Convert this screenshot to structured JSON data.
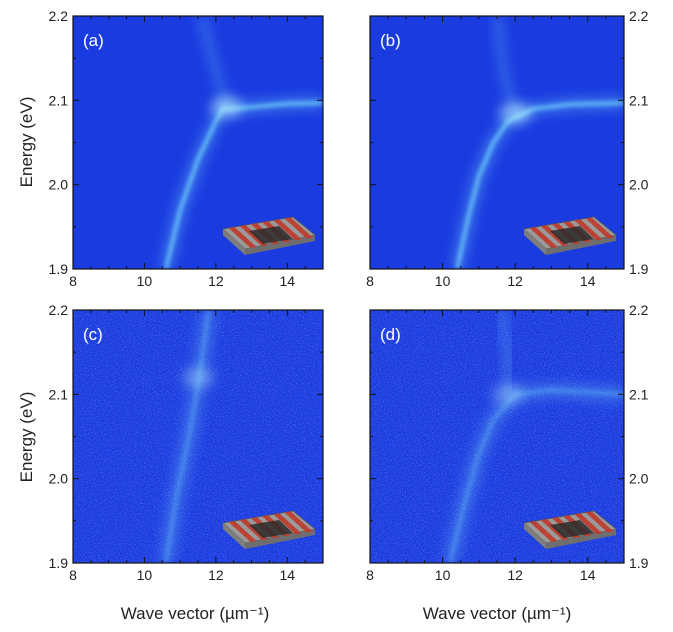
{
  "chart_data": {
    "type": "heatmap",
    "xlabel": "Wave vector (µm⁻¹)",
    "ylabel": "Energy (eV)",
    "xlim": [
      8,
      15
    ],
    "ylim": [
      1.9,
      2.2
    ],
    "xticks": [
      "8",
      "10",
      "12",
      "14"
    ],
    "yticks": [
      "1.9",
      "2.0",
      "2.1",
      "2.2"
    ],
    "colors": {
      "background": "#1a3be0",
      "mode": "#7fe9ff"
    },
    "panels": [
      {
        "label": "(a)",
        "type": "heatmap",
        "noisy": false,
        "photon_line": [
          [
            10.6,
            1.9
          ],
          [
            11.0,
            1.97
          ],
          [
            11.5,
            2.03
          ],
          [
            12.0,
            2.075
          ],
          [
            12.2,
            2.09
          ],
          [
            12.5,
            2.09
          ],
          [
            13.0,
            2.092
          ],
          [
            14.0,
            2.096
          ],
          [
            15.0,
            2.097
          ]
        ],
        "upper_branch": [
          [
            11.9,
            2.15
          ],
          [
            11.6,
            2.2
          ]
        ],
        "bright_spot": [
          12.3,
          2.092
        ]
      },
      {
        "label": "(b)",
        "type": "heatmap",
        "noisy": false,
        "photon_line": [
          [
            10.4,
            1.9
          ],
          [
            10.7,
            1.96
          ],
          [
            11.0,
            2.01
          ],
          [
            11.4,
            2.05
          ],
          [
            11.8,
            2.075
          ],
          [
            12.5,
            2.09
          ],
          [
            13.5,
            2.095
          ],
          [
            15.0,
            2.097
          ]
        ],
        "upper_branch": [
          [
            11.7,
            2.13
          ],
          [
            11.5,
            2.2
          ]
        ],
        "bright_spot": [
          12.0,
          2.085
        ]
      },
      {
        "label": "(c)",
        "type": "heatmap",
        "noisy": true,
        "photon_line": [
          [
            10.6,
            1.9
          ],
          [
            10.9,
            1.98
          ],
          [
            11.2,
            2.04
          ],
          [
            11.5,
            2.11
          ],
          [
            11.8,
            2.2
          ]
        ],
        "upper_branch": [],
        "bright_spot": [
          11.5,
          2.12
        ]
      },
      {
        "label": "(d)",
        "type": "heatmap",
        "noisy": true,
        "photon_line": [
          [
            10.2,
            1.9
          ],
          [
            10.6,
            1.97
          ],
          [
            11.0,
            2.03
          ],
          [
            11.4,
            2.07
          ],
          [
            12.0,
            2.1
          ],
          [
            13.0,
            2.105
          ],
          [
            15.0,
            2.1
          ]
        ],
        "upper_branch": [
          [
            11.8,
            2.15
          ],
          [
            11.6,
            2.2
          ]
        ],
        "bright_spot": [
          11.8,
          2.1
        ]
      }
    ]
  }
}
